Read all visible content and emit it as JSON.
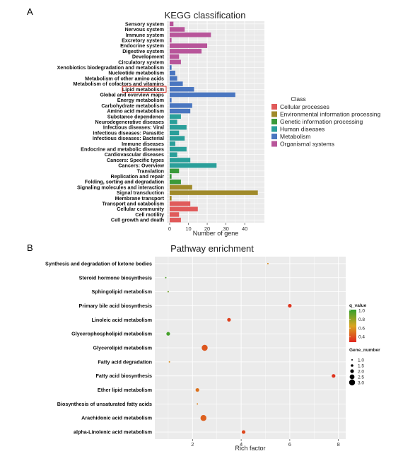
{
  "panels": {
    "a_label": "A",
    "b_label": "B"
  },
  "chart_data": [
    {
      "type": "bar",
      "orientation": "horizontal",
      "title": "KEGG classification",
      "xlabel": "Number of gene",
      "ylabel": "",
      "xlim": [
        0,
        49
      ],
      "xticks": [
        0,
        10,
        20,
        30,
        40
      ],
      "grid": true,
      "highlighted_category": "Lipid metabolism",
      "legend": {
        "title": "Class",
        "placement": "right",
        "entries": [
          {
            "name": "Cellular processes",
            "color": "#E05A5A"
          },
          {
            "name": "Environmental information processing",
            "color": "#A08A2A"
          },
          {
            "name": "Genetic information processing",
            "color": "#3A9A3A"
          },
          {
            "name": "Human diseases",
            "color": "#2A9F9A"
          },
          {
            "name": "Metabolism",
            "color": "#4A76C0"
          },
          {
            "name": "Organismal systems",
            "color": "#B8559A"
          }
        ]
      },
      "categories": [
        "Sensory system",
        "Nervous system",
        "Immune system",
        "Excretory system",
        "Endocrine system",
        "Digestive system",
        "Development",
        "Circulatory system",
        "Xenobiotics biodegradation and metabolism",
        "Nucleotide metabolism",
        "Metabolism of other amino acids",
        "Metabolism of cofactors and vitamins",
        "Lipid metabolism",
        "Global and overview maps",
        "Energy metabolism",
        "Carbohydrate metabolism",
        "Amino acid metabolism",
        "Substance dependence",
        "Neurodegenerative diseases",
        "Infectious diseases: Viral",
        "Infectious diseases: Parasitic",
        "Infectious diseases: Bacterial",
        "Immune diseases",
        "Endocrine and metabolic diseases",
        "Cardiovascular diseases",
        "Cancers: Specific types",
        "Cancers: Overview",
        "Translation",
        "Replication and repair",
        "Folding, sorting and degradation",
        "Signaling molecules and interaction",
        "Signal transduction",
        "Membrane transport",
        "Transport and catabolism",
        "Cellular community",
        "Cell motility",
        "Cell growth and death"
      ],
      "values": [
        2,
        8,
        22,
        1,
        20,
        17,
        5,
        6,
        1,
        3,
        4,
        7,
        13,
        35,
        1,
        12,
        11,
        6,
        4,
        9,
        5,
        8,
        3,
        9,
        4,
        11,
        25,
        5,
        1,
        6,
        12,
        47,
        1,
        11,
        15,
        5,
        6
      ],
      "classes": [
        "Organismal systems",
        "Organismal systems",
        "Organismal systems",
        "Organismal systems",
        "Organismal systems",
        "Organismal systems",
        "Organismal systems",
        "Organismal systems",
        "Metabolism",
        "Metabolism",
        "Metabolism",
        "Metabolism",
        "Metabolism",
        "Metabolism",
        "Metabolism",
        "Metabolism",
        "Metabolism",
        "Human diseases",
        "Human diseases",
        "Human diseases",
        "Human diseases",
        "Human diseases",
        "Human diseases",
        "Human diseases",
        "Human diseases",
        "Human diseases",
        "Human diseases",
        "Genetic information processing",
        "Genetic information processing",
        "Genetic information processing",
        "Environmental information processing",
        "Environmental information processing",
        "Environmental information processing",
        "Cellular processes",
        "Cellular processes",
        "Cellular processes",
        "Cellular processes"
      ]
    },
    {
      "type": "scatter",
      "title": "Pathway enrichment",
      "xlabel": "Rich factor",
      "ylabel": "",
      "xlim": [
        0.45,
        8.3
      ],
      "xticks": [
        2,
        4,
        6,
        8
      ],
      "grid": true,
      "color_legend": {
        "title": "q_value",
        "ticks": [
          1.0,
          0.8,
          0.6,
          0.4
        ],
        "range": [
          0.28,
          1.02
        ],
        "low_color": "#E0261E",
        "high_color": "#32A02C"
      },
      "size_legend": {
        "title": "Gene_number",
        "ticks": [
          1.0,
          1.5,
          2.0,
          2.5,
          3.0
        ]
      },
      "categories": [
        "Synthesis and degradation of ketone bodies",
        "Steroid hormone biosynthesis",
        "Sphingolipid metabolism",
        "Primary bile acid biosynthesis",
        "Linoleic acid metabolism",
        "Glycerophospholipid metabolism",
        "Glycerolipid metabolism",
        "Fatty acid degradation",
        "Fatty acid biosynthesis",
        "Ether lipid metabolism",
        "Biosynthesis of unsaturated fatty acids",
        "Arachidonic acid metabolism",
        "alpha-Linolenic acid metabolism"
      ],
      "points": [
        {
          "pathway": "Synthesis and degradation of ketone bodies",
          "rich_factor": 5.1,
          "gene_number": 1,
          "q_value": 0.58
        },
        {
          "pathway": "Steroid hormone biosynthesis",
          "rich_factor": 0.9,
          "gene_number": 1,
          "q_value": 0.95
        },
        {
          "pathway": "Sphingolipid metabolism",
          "rich_factor": 1.0,
          "gene_number": 1,
          "q_value": 0.88
        },
        {
          "pathway": "Primary bile acid biosynthesis",
          "rich_factor": 6.0,
          "gene_number": 2,
          "q_value": 0.32
        },
        {
          "pathway": "Linoleic acid metabolism",
          "rich_factor": 3.5,
          "gene_number": 2,
          "q_value": 0.36
        },
        {
          "pathway": "Glycerophospholipid metabolism",
          "rich_factor": 1.0,
          "gene_number": 2,
          "q_value": 0.98
        },
        {
          "pathway": "Glycerolipid metabolism",
          "rich_factor": 2.5,
          "gene_number": 3,
          "q_value": 0.42
        },
        {
          "pathway": "Fatty acid degradation",
          "rich_factor": 1.05,
          "gene_number": 1,
          "q_value": 0.58
        },
        {
          "pathway": "Fatty acid biosynthesis",
          "rich_factor": 7.8,
          "gene_number": 2,
          "q_value": 0.32
        },
        {
          "pathway": "Ether lipid metabolism",
          "rich_factor": 2.2,
          "gene_number": 2,
          "q_value": 0.5
        },
        {
          "pathway": "Biosynthesis of unsaturated fatty acids",
          "rich_factor": 2.2,
          "gene_number": 1,
          "q_value": 0.55
        },
        {
          "pathway": "Arachidonic acid metabolism",
          "rich_factor": 2.45,
          "gene_number": 3,
          "q_value": 0.45
        },
        {
          "pathway": "alpha-Linolenic acid metabolism",
          "rich_factor": 4.1,
          "gene_number": 2,
          "q_value": 0.38
        }
      ]
    }
  ]
}
